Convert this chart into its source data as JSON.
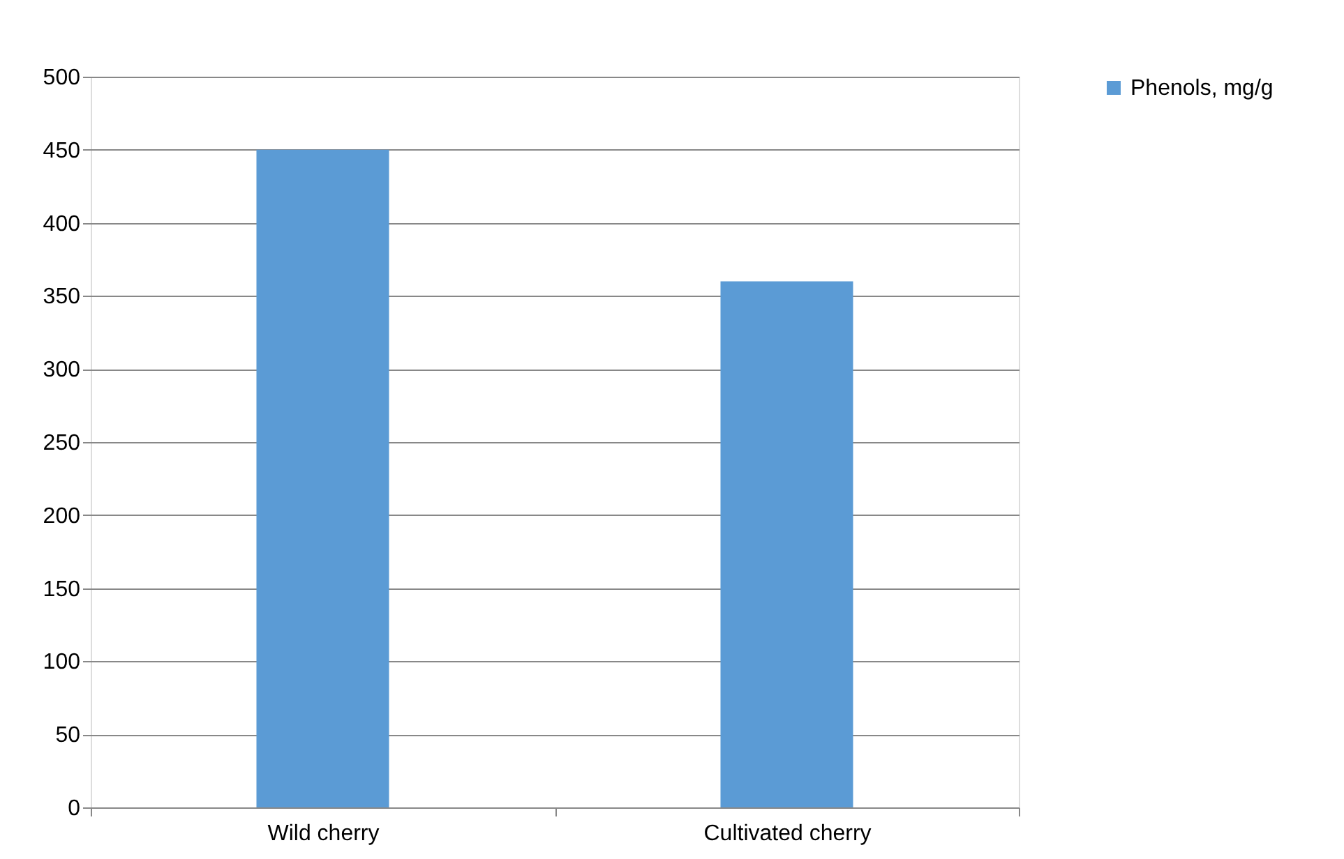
{
  "chart_data": {
    "type": "bar",
    "categories": [
      "Wild cherry",
      "Cultivated cherry"
    ],
    "series": [
      {
        "name": "Phenols, mg/g",
        "color": "#5b9bd5",
        "values": [
          450,
          360
        ]
      }
    ],
    "ylim": [
      0,
      500
    ],
    "yticks": [
      0,
      50,
      100,
      150,
      200,
      250,
      300,
      350,
      400,
      450,
      500
    ],
    "grid": "y",
    "legend": "right"
  }
}
